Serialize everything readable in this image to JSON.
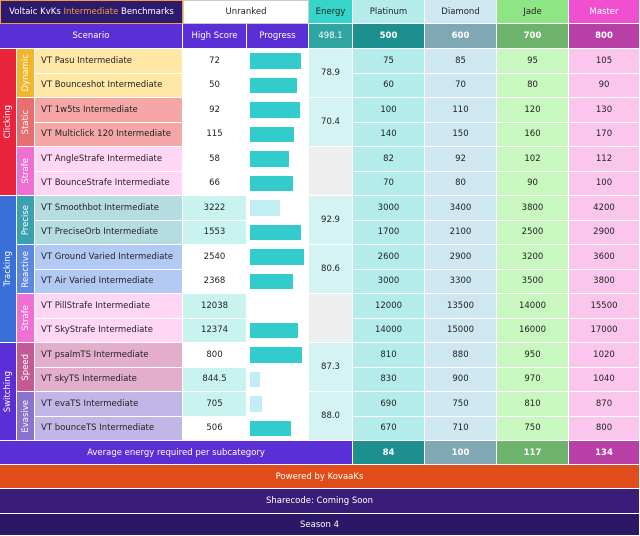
{
  "header": {
    "title_pre": "Voltaic KvKs ",
    "title_accent": "Intermediate",
    "title_post": " Benchmarks",
    "rank": "Unranked",
    "energy": "Energy",
    "tiers": [
      "Platinum",
      "Diamond",
      "Jade",
      "Master"
    ]
  },
  "columns": {
    "scenario": "Scenario",
    "high_score": "High Score",
    "progress": "Progress",
    "total_energy": "498.1",
    "thresholds": [
      "500",
      "600",
      "700",
      "800"
    ]
  },
  "categories": [
    "Clicking",
    "Tracking",
    "Switching"
  ],
  "subcategories": [
    "Dynamic",
    "Static",
    "Strafe",
    "Precise",
    "Reactive",
    "Strafe",
    "Speed",
    "Evasive"
  ],
  "subcategory_energy": [
    "78.9",
    "70.4",
    "",
    "92.9",
    "80.6",
    "",
    "87.3",
    "88.0"
  ],
  "rows": [
    {
      "name": "VT Pasu Intermediate",
      "score": "72",
      "progress": 0.92,
      "thresholds": [
        "75",
        "85",
        "95",
        "105"
      ]
    },
    {
      "name": "VT Bounceshot Intermediate",
      "score": "50",
      "progress": 0.85,
      "thresholds": [
        "60",
        "70",
        "80",
        "90"
      ]
    },
    {
      "name": "VT 1w5ts Intermediate",
      "score": "92",
      "progress": 0.9,
      "thresholds": [
        "100",
        "110",
        "120",
        "130"
      ]
    },
    {
      "name": "VT Multiclick 120 Intermediate",
      "score": "115",
      "progress": 0.8,
      "thresholds": [
        "140",
        "150",
        "160",
        "170"
      ]
    },
    {
      "name": "VT AngleStrafe Intermediate",
      "score": "58",
      "progress": 0.7,
      "thresholds": [
        "82",
        "92",
        "102",
        "112"
      ]
    },
    {
      "name": "VT BounceStrafe Intermediate",
      "score": "66",
      "progress": 0.78,
      "thresholds": [
        "70",
        "80",
        "90",
        "100"
      ]
    },
    {
      "name": "VT Smoothbot Intermediate",
      "score": "3222",
      "progress": 0.55,
      "thresholds": [
        "3000",
        "3400",
        "3800",
        "4200"
      ]
    },
    {
      "name": "VT PreciseOrb Intermediate",
      "score": "1553",
      "progress": 0.92,
      "thresholds": [
        "1700",
        "2100",
        "2500",
        "2900"
      ]
    },
    {
      "name": "VT Ground Varied Intermediate",
      "score": "2540",
      "progress": 0.98,
      "thresholds": [
        "2600",
        "2900",
        "3200",
        "3600"
      ]
    },
    {
      "name": "VT Air Varied Intermediate",
      "score": "2368",
      "progress": 0.78,
      "thresholds": [
        "3000",
        "3300",
        "3500",
        "3800"
      ]
    },
    {
      "name": "VT PillStrafe Intermediate",
      "score": "12038",
      "progress": 0.0,
      "thresholds": [
        "12000",
        "13500",
        "14000",
        "15500"
      ]
    },
    {
      "name": "VT SkyStrafe Intermediate",
      "score": "12374",
      "progress": 0.88,
      "thresholds": [
        "14000",
        "15000",
        "16000",
        "17000"
      ]
    },
    {
      "name": "VT psalmTS Intermediate",
      "score": "800",
      "progress": 0.95,
      "thresholds": [
        "810",
        "880",
        "950",
        "1020"
      ]
    },
    {
      "name": "VT skyTS Intermediate",
      "score": "844.5",
      "progress": 0.18,
      "thresholds": [
        "830",
        "900",
        "970",
        "1040"
      ]
    },
    {
      "name": "VT evaTS Intermediate",
      "score": "705",
      "progress": 0.22,
      "thresholds": [
        "690",
        "750",
        "810",
        "870"
      ]
    },
    {
      "name": "VT bounceTS Intermediate",
      "score": "506",
      "progress": 0.75,
      "thresholds": [
        "670",
        "710",
        "750",
        "800"
      ]
    }
  ],
  "footer": {
    "avg_label": "Average energy required per subcategory",
    "avg_values": [
      "84",
      "100",
      "117",
      "134"
    ],
    "powered": "Powered by KovaaKs",
    "sharecode": "Sharecode: Coming Soon",
    "season": "Season 4"
  },
  "colors": {
    "header_dark": "#2b1a6e",
    "accent": "#f39c3a",
    "purple_row": "#5a2fd6",
    "energy_teal": "#33d6c8",
    "platinum": "#b4ecec",
    "diamond": "#cfe7f1",
    "jade": "#c8f7c0",
    "master": "#fbc6ee",
    "platinum_head": "#1e8f8f",
    "diamond_head": "#7fa7b4",
    "jade_head": "#6db36b",
    "master_head": "#b83fa6",
    "powered": "#e04d1a",
    "sharecode": "#3a1d78",
    "season": "#2a1765"
  }
}
